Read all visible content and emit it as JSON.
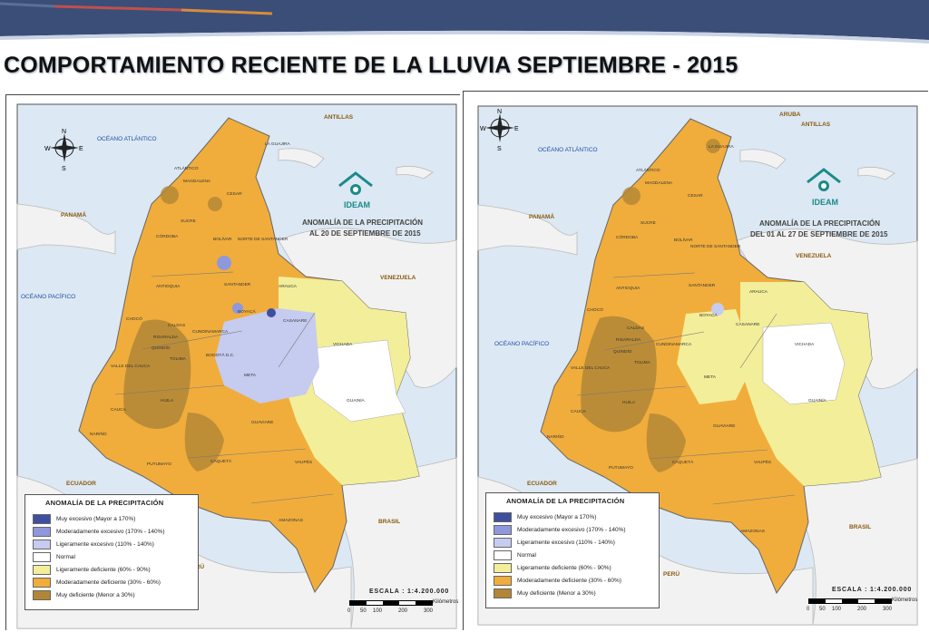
{
  "slide": {
    "title": "COMPORTAMIENTO RECIENTE DE LA LLUVIA SEPTIEMBRE - 2015"
  },
  "colors": {
    "banner_navy": "#3a4e78",
    "banner_red": "#c0504d",
    "banner_orange": "#d98b3a",
    "sea": "#dce8f3",
    "neighbor_land": "#f2f2f2",
    "muy_excesivo": "#3f4fa0",
    "moderadamente_excesivo": "#8f97dd",
    "ligeramente_excesivo": "#c6cbf0",
    "normal": "#ffffff",
    "ligeramente_deficiente": "#f3ee9a",
    "moderadamente_deficiente": "#f0ad3c",
    "muy_deficiente": "#b28636"
  },
  "maps": [
    {
      "panel": "left",
      "title_line1": "ANOMALÍA DE LA PRECIPITACIÓN",
      "title_line2": "AL 20 DE SEPTIEMBRE DE 2015",
      "logo_text": "IDEAM",
      "compass": {
        "n": "N",
        "s": "S",
        "e": "E",
        "w": "W"
      },
      "ocean_labels": [
        "OCÉANO ATLÁNTICO",
        "OCÉANO PACÍFICO"
      ],
      "country_labels": [
        "ANTILLAS",
        "PANAMÁ",
        "VENEZUELA",
        "ECUADOR",
        "BRASIL",
        "PERÚ"
      ],
      "department_labels": [
        "LA GUAJIRA",
        "ATLÁNTICO",
        "MAGDALENA",
        "CESAR",
        "SUCRE",
        "BOLÍVAR",
        "NORTE DE SANTANDER",
        "CÓRDOBA",
        "ANTIOQUIA",
        "SANTANDER",
        "ARAUCA",
        "CHOCÓ",
        "BOYACÁ",
        "CASANARE",
        "CALDAS",
        "CUNDINAMARCA",
        "RISARALDA",
        "QUINDÍO",
        "TOLIMA",
        "BOGOTÁ D.C.",
        "VICHADA",
        "VALLE DEL CAUCA",
        "META",
        "HUILA",
        "GUAINÍA",
        "CAUCA",
        "GUAVIARE",
        "NARIÑO",
        "PUTUMAYO",
        "CAQUETÁ",
        "VAUPÉS",
        "AMAZONAS"
      ],
      "legend": {
        "title": "ANOMALÍA DE LA PRECIPITACIÓN",
        "items": [
          {
            "label": "Muy excesivo (Mayor a 170%)",
            "color": "#3f4fa0"
          },
          {
            "label": "Moderadamente excesivo (170% - 140%)",
            "color": "#8f97dd"
          },
          {
            "label": "Ligeramente excesivo (110% - 140%)",
            "color": "#c6cbf0"
          },
          {
            "label": "Normal",
            "color": "#ffffff"
          },
          {
            "label": "Ligeramente deficiente (60% - 90%)",
            "color": "#f3ee9a"
          },
          {
            "label": "Moderadamente deficiente (30% - 60%)",
            "color": "#f0ad3c"
          },
          {
            "label": "Muy deficiente (Menor a 30%)",
            "color": "#b28636"
          }
        ]
      },
      "scale": {
        "label": "ESCALA : 1:4.200.000",
        "ticks": [
          "0",
          "50",
          "100",
          "200",
          "300"
        ],
        "unit": "Kilómetros"
      }
    },
    {
      "panel": "right",
      "title_line1": "ANOMALÍA DE LA PRECIPITACIÓN",
      "title_line2": "DEL 01 AL 27 DE SEPTIEMBRE DE 2015",
      "logo_text": "IDEAM",
      "compass": {
        "n": "N",
        "s": "S",
        "e": "E",
        "w": "W"
      },
      "ocean_labels": [
        "OCÉANO ATLÁNTICO",
        "OCÉANO PACÍFICO"
      ],
      "country_labels": [
        "ARUBA",
        "ANTILLAS",
        "PANAMÁ",
        "VENEZUELA",
        "ECUADOR",
        "BRASIL",
        "PERÚ"
      ],
      "department_labels": [
        "LA GUAJIRA",
        "ATLÁNTICO",
        "MAGDALENA",
        "CESAR",
        "SUCRE",
        "BOLÍVAR",
        "NORTE DE SANTANDER",
        "CÓRDOBA",
        "ANTIOQUIA",
        "SANTANDER",
        "ARAUCA",
        "CHOCÓ",
        "BOYACÁ",
        "CASANARE",
        "CALDAS",
        "CUNDINAMARCA",
        "RISARALDA",
        "QUINDÍO",
        "TOLIMA",
        "VICHADA",
        "VALLE DEL CAUCA",
        "META",
        "HUILA",
        "GUAINÍA",
        "CAUCA",
        "GUAVIARE",
        "NARIÑO",
        "PUTUMAYO",
        "CAQUETÁ",
        "VAUPÉS",
        "AMAZONAS"
      ],
      "legend": {
        "title": "ANOMALÍA DE LA PRECIPITACIÓN",
        "items": [
          {
            "label": "Muy excesivo (Mayor a 170%)",
            "color": "#3f4fa0"
          },
          {
            "label": "Moderadamente excesivo (170% - 140%)",
            "color": "#8f97dd"
          },
          {
            "label": "Ligeramente excesivo (110% - 140%)",
            "color": "#c6cbf0"
          },
          {
            "label": "Normal",
            "color": "#ffffff"
          },
          {
            "label": "Ligeramente deficiente (60% - 90%)",
            "color": "#f3ee9a"
          },
          {
            "label": "Moderadamente deficiente (30% - 60%)",
            "color": "#f0ad3c"
          },
          {
            "label": "Muy deficiente (Menor a 30%)",
            "color": "#b28636"
          }
        ]
      },
      "scale": {
        "label": "ESCALA : 1:4.200.000",
        "ticks": [
          "0",
          "50",
          "100",
          "200",
          "300"
        ],
        "unit": "Kilómetros"
      }
    }
  ]
}
